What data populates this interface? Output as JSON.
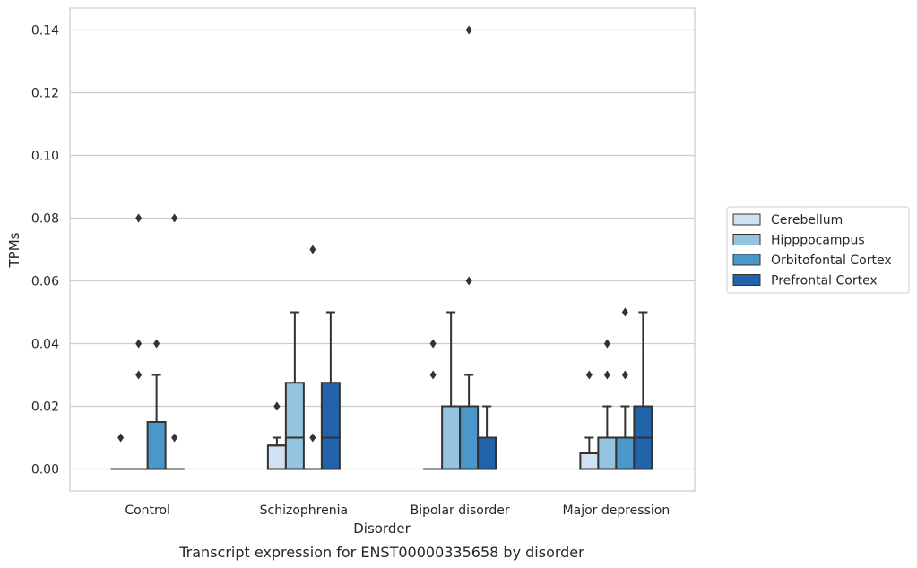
{
  "chart_data": {
    "type": "box",
    "caption": "Transcript expression for ENST00000335658 by disorder",
    "xlabel": "Disorder",
    "ylabel": "TPMs",
    "ylim": [
      -0.007,
      0.147
    ],
    "yticks": [
      "0.00",
      "0.02",
      "0.04",
      "0.06",
      "0.08",
      "0.10",
      "0.12",
      "0.14"
    ],
    "ytick_values": [
      0,
      0.02,
      0.04,
      0.06,
      0.08,
      0.1,
      0.12,
      0.14
    ],
    "grid": "horizontal",
    "legend_position": "right",
    "categories": [
      "Control",
      "Schizophrenia",
      "Bipolar disorder",
      "Major depression"
    ],
    "series": [
      {
        "name": "Cerebellum",
        "color": "#d0e1f2",
        "boxes": [
          {
            "q1": 0,
            "median": 0,
            "q3": 0,
            "whisker_low": 0,
            "whisker_high": 0,
            "outliers": [
              0.01
            ]
          },
          {
            "q1": 0,
            "median": 0.0075,
            "q3": 0.0075,
            "whisker_low": 0,
            "whisker_high": 0.01,
            "outliers": [
              0.02,
              0.02
            ]
          },
          {
            "q1": 0,
            "median": 0,
            "q3": 0,
            "whisker_low": 0,
            "whisker_high": 0,
            "outliers": [
              0.03,
              0.04
            ]
          },
          {
            "q1": 0,
            "median": 0,
            "q3": 0.005,
            "whisker_low": 0,
            "whisker_high": 0.01,
            "outliers": [
              0.03
            ]
          }
        ]
      },
      {
        "name": "Hipppocampus",
        "color": "#94c4df",
        "boxes": [
          {
            "q1": 0,
            "median": 0,
            "q3": 0,
            "whisker_low": 0,
            "whisker_high": 0,
            "outliers": [
              0.03,
              0.04,
              0.08
            ]
          },
          {
            "q1": 0,
            "median": 0.01,
            "q3": 0.0275,
            "whisker_low": 0,
            "whisker_high": 0.05,
            "outliers": []
          },
          {
            "q1": 0,
            "median": 0,
            "q3": 0.02,
            "whisker_low": 0,
            "whisker_high": 0.05,
            "outliers": []
          },
          {
            "q1": 0,
            "median": 0.01,
            "q3": 0.01,
            "whisker_low": 0,
            "whisker_high": 0.02,
            "outliers": [
              0.03,
              0.04
            ]
          }
        ]
      },
      {
        "name": "Orbitofontal Cortex",
        "color": "#4a98c9",
        "boxes": [
          {
            "q1": 0,
            "median": 0,
            "q3": 0.015,
            "whisker_low": 0,
            "whisker_high": 0.03,
            "outliers": [
              0.04
            ]
          },
          {
            "q1": 0,
            "median": 0,
            "q3": 0,
            "whisker_low": 0,
            "whisker_high": 0,
            "outliers": [
              0.01,
              0.07
            ]
          },
          {
            "q1": 0,
            "median": 0,
            "q3": 0.02,
            "whisker_low": 0,
            "whisker_high": 0.03,
            "outliers": [
              0.06,
              0.14
            ]
          },
          {
            "q1": 0,
            "median": 0.01,
            "q3": 0.01,
            "whisker_low": 0,
            "whisker_high": 0.02,
            "outliers": [
              0.03,
              0.05
            ]
          }
        ]
      },
      {
        "name": "Prefrontal Cortex",
        "color": "#2164ab",
        "boxes": [
          {
            "q1": 0,
            "median": 0,
            "q3": 0,
            "whisker_low": 0,
            "whisker_high": 0,
            "outliers": [
              0.01,
              0.08
            ]
          },
          {
            "q1": 0,
            "median": 0.01,
            "q3": 0.0275,
            "whisker_low": 0,
            "whisker_high": 0.05,
            "outliers": []
          },
          {
            "q1": 0,
            "median": 0,
            "q3": 0.01,
            "whisker_low": 0,
            "whisker_high": 0.02,
            "outliers": []
          },
          {
            "q1": 0,
            "median": 0.01,
            "q3": 0.02,
            "whisker_low": 0,
            "whisker_high": 0.05,
            "outliers": []
          }
        ]
      }
    ]
  }
}
